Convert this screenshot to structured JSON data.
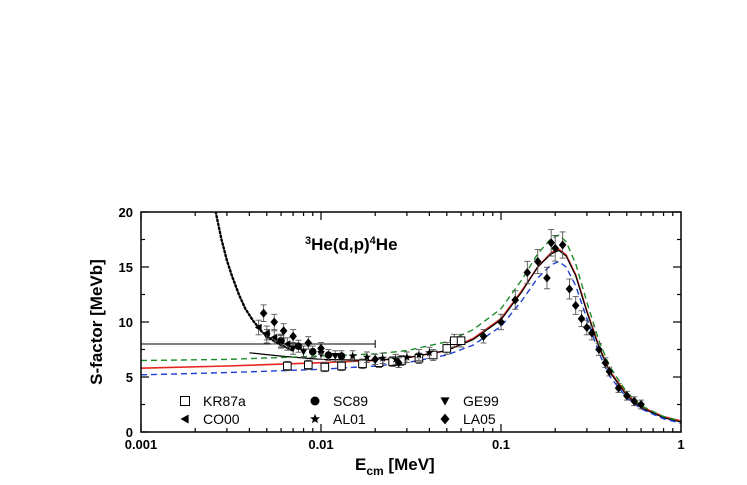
{
  "chart_data": {
    "type": "scatter",
    "title": "",
    "annotation": {
      "sup1": "3",
      "main1": "He(d,p)",
      "sup2": "4",
      "main2": "He"
    },
    "xlabel": {
      "main": "E",
      "sub": "cm",
      "unit": " [MeV]"
    },
    "ylabel": "S-factor [MeVb]",
    "xscale": "log",
    "xlim": [
      0.001,
      1
    ],
    "ylim": [
      0,
      20
    ],
    "xticks": [
      {
        "v": 0.001,
        "label": "0.001"
      },
      {
        "v": 0.01,
        "label": "0.01"
      },
      {
        "v": 0.1,
        "label": "0.1"
      },
      {
        "v": 1,
        "label": "1"
      }
    ],
    "yticks": [
      {
        "v": 0,
        "label": "0"
      },
      {
        "v": 5,
        "label": "5"
      },
      {
        "v": 10,
        "label": "10"
      },
      {
        "v": 15,
        "label": "15"
      },
      {
        "v": 20,
        "label": "20"
      }
    ],
    "legend_position": "bottom-left",
    "series": [
      {
        "name": "KR87a",
        "marker": "open-square",
        "points": [
          [
            0.0065,
            6.0
          ],
          [
            0.0085,
            6.1
          ],
          [
            0.0105,
            5.9
          ],
          [
            0.013,
            6.0
          ],
          [
            0.017,
            6.2
          ],
          [
            0.021,
            6.3
          ],
          [
            0.025,
            6.4
          ],
          [
            0.028,
            6.5
          ],
          [
            0.035,
            6.7
          ],
          [
            0.042,
            7.0
          ],
          [
            0.05,
            7.6
          ],
          [
            0.055,
            8.3
          ],
          [
            0.06,
            8.3
          ]
        ]
      },
      {
        "name": "SC89",
        "marker": "filled-circle",
        "points": [
          [
            0.006,
            8.3
          ],
          [
            0.0075,
            7.8
          ],
          [
            0.009,
            7.3
          ],
          [
            0.011,
            7.0
          ],
          [
            0.013,
            6.9
          ]
        ]
      },
      {
        "name": "GE99",
        "marker": "down-triangle",
        "points": [
          [
            0.005,
            8.7
          ],
          [
            0.006,
            8.2
          ],
          [
            0.007,
            7.6
          ],
          [
            0.008,
            7.3
          ],
          [
            0.01,
            7.1
          ],
          [
            0.012,
            6.9
          ]
        ]
      },
      {
        "name": "CO00",
        "marker": "left-triangle",
        "points": [
          [
            0.0045,
            9.5
          ],
          [
            0.005,
            9.0
          ],
          [
            0.0055,
            8.6
          ],
          [
            0.006,
            8.3
          ],
          [
            0.0065,
            8.0
          ]
        ]
      },
      {
        "name": "AL01",
        "marker": "star",
        "points": [
          [
            0.015,
            6.9
          ],
          [
            0.018,
            6.8
          ],
          [
            0.022,
            6.7
          ],
          [
            0.026,
            6.6
          ],
          [
            0.03,
            6.8
          ],
          [
            0.035,
            7.0
          ],
          [
            0.04,
            7.2
          ]
        ]
      },
      {
        "name": "LA05",
        "marker": "filled-diamond",
        "points": [
          [
            0.0048,
            10.8
          ],
          [
            0.0055,
            10.0
          ],
          [
            0.0062,
            9.2
          ],
          [
            0.007,
            8.7
          ],
          [
            0.0085,
            8.1
          ],
          [
            0.01,
            7.6
          ],
          [
            0.02,
            6.6
          ],
          [
            0.027,
            6.3
          ],
          [
            0.08,
            8.7
          ],
          [
            0.1,
            10.0
          ],
          [
            0.12,
            12.0
          ],
          [
            0.14,
            14.5
          ],
          [
            0.16,
            15.5
          ],
          [
            0.18,
            14.0
          ],
          [
            0.19,
            17.2
          ],
          [
            0.2,
            16.7
          ],
          [
            0.22,
            17.0
          ],
          [
            0.24,
            13.0
          ],
          [
            0.26,
            11.5
          ],
          [
            0.28,
            10.3
          ],
          [
            0.3,
            9.5
          ],
          [
            0.32,
            9.0
          ],
          [
            0.35,
            7.5
          ],
          [
            0.38,
            6.3
          ],
          [
            0.4,
            5.5
          ],
          [
            0.45,
            4.0
          ],
          [
            0.5,
            3.3
          ],
          [
            0.55,
            2.8
          ],
          [
            0.6,
            2.5
          ]
        ]
      }
    ],
    "curves": [
      {
        "style": "solid-red",
        "color": "#e8261f",
        "points": [
          [
            0.001,
            5.8
          ],
          [
            0.003,
            6.0
          ],
          [
            0.01,
            6.3
          ],
          [
            0.02,
            6.5
          ],
          [
            0.03,
            6.75
          ],
          [
            0.05,
            7.4
          ],
          [
            0.07,
            8.5
          ],
          [
            0.1,
            10.3
          ],
          [
            0.13,
            12.8
          ],
          [
            0.16,
            15.0
          ],
          [
            0.19,
            16.3
          ],
          [
            0.21,
            16.6
          ],
          [
            0.23,
            16.1
          ],
          [
            0.26,
            14.3
          ],
          [
            0.3,
            11.0
          ],
          [
            0.35,
            7.8
          ],
          [
            0.4,
            5.6
          ],
          [
            0.5,
            3.4
          ],
          [
            0.6,
            2.3
          ],
          [
            0.8,
            1.4
          ],
          [
            1,
            1.0
          ]
        ]
      },
      {
        "style": "solid-black",
        "color": "#000000",
        "points": [
          [
            0.004,
            7.2
          ],
          [
            0.006,
            6.9
          ],
          [
            0.01,
            6.6
          ],
          [
            0.02,
            6.5
          ],
          [
            0.03,
            6.75
          ],
          [
            0.05,
            7.4
          ],
          [
            0.07,
            8.4
          ],
          [
            0.1,
            10.2
          ],
          [
            0.13,
            12.7
          ],
          [
            0.16,
            15.0
          ],
          [
            0.19,
            16.2
          ],
          [
            0.21,
            16.5
          ],
          [
            0.23,
            16.0
          ],
          [
            0.26,
            14.2
          ],
          [
            0.3,
            10.9
          ],
          [
            0.35,
            7.7
          ],
          [
            0.4,
            5.5
          ],
          [
            0.5,
            3.3
          ],
          [
            0.6,
            2.2
          ],
          [
            0.8,
            1.3
          ],
          [
            1,
            0.9
          ]
        ]
      },
      {
        "style": "dashed-green",
        "color": "#1d8c2a",
        "points": [
          [
            0.001,
            6.5
          ],
          [
            0.003,
            6.6
          ],
          [
            0.01,
            6.9
          ],
          [
            0.02,
            7.1
          ],
          [
            0.03,
            7.4
          ],
          [
            0.05,
            8.2
          ],
          [
            0.07,
            9.3
          ],
          [
            0.1,
            11.2
          ],
          [
            0.13,
            13.8
          ],
          [
            0.16,
            16.2
          ],
          [
            0.19,
            17.6
          ],
          [
            0.21,
            17.9
          ],
          [
            0.23,
            17.3
          ],
          [
            0.26,
            15.3
          ],
          [
            0.3,
            11.8
          ],
          [
            0.35,
            8.3
          ],
          [
            0.4,
            6.0
          ],
          [
            0.5,
            3.6
          ],
          [
            0.6,
            2.4
          ],
          [
            0.8,
            1.4
          ],
          [
            1,
            1.0
          ]
        ]
      },
      {
        "style": "dashed-blue",
        "color": "#1f3fd6",
        "points": [
          [
            0.001,
            5.2
          ],
          [
            0.003,
            5.4
          ],
          [
            0.01,
            5.7
          ],
          [
            0.02,
            6.0
          ],
          [
            0.03,
            6.3
          ],
          [
            0.05,
            7.0
          ],
          [
            0.07,
            7.9
          ],
          [
            0.1,
            9.6
          ],
          [
            0.13,
            11.9
          ],
          [
            0.16,
            14.0
          ],
          [
            0.19,
            15.2
          ],
          [
            0.21,
            15.5
          ],
          [
            0.23,
            15.0
          ],
          [
            0.26,
            13.3
          ],
          [
            0.3,
            10.3
          ],
          [
            0.35,
            7.2
          ],
          [
            0.4,
            5.1
          ],
          [
            0.5,
            3.1
          ],
          [
            0.6,
            2.1
          ],
          [
            0.8,
            1.2
          ],
          [
            1,
            0.8
          ]
        ]
      },
      {
        "style": "dotted-black",
        "color": "#000000",
        "points": [
          [
            0.0026,
            20.0
          ],
          [
            0.0028,
            17.5
          ],
          [
            0.003,
            15.6
          ],
          [
            0.0032,
            14.2
          ],
          [
            0.0035,
            12.5
          ],
          [
            0.0038,
            11.2
          ],
          [
            0.0042,
            10.1
          ],
          [
            0.0047,
            9.1
          ],
          [
            0.0052,
            8.5
          ],
          [
            0.006,
            7.9
          ],
          [
            0.007,
            7.4
          ]
        ]
      }
    ]
  }
}
